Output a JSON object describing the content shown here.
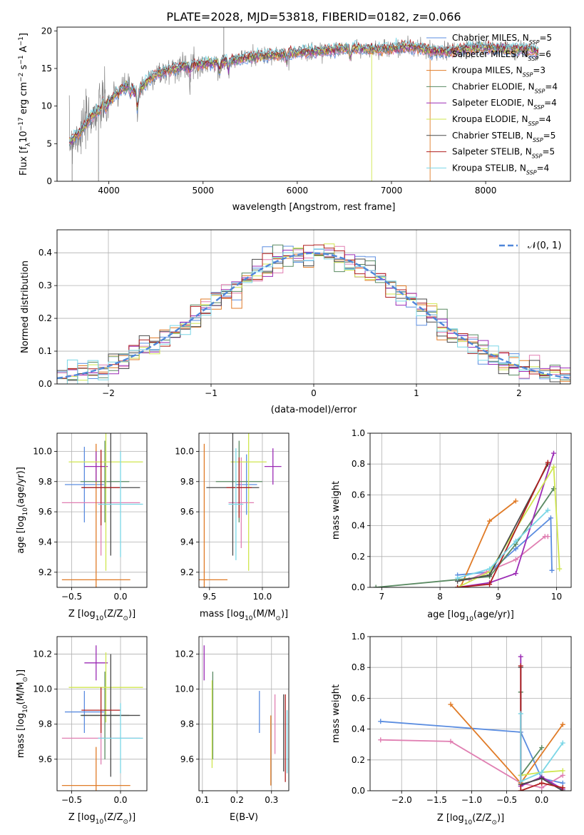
{
  "colors": {
    "chabrier_miles": "#5b8de0",
    "salpeter_miles": "#e07fb2",
    "kroupa_miles": "#e07b27",
    "chabrier_elodie": "#5a8a62",
    "salpeter_elodie": "#9b2bb5",
    "kroupa_elodie": "#cfe64f",
    "chabrier_stelib": "#4a4a4a",
    "salpeter_stelib": "#b01f1f",
    "kroupa_stelib": "#7ad6e6",
    "data_spectrum": "#808080",
    "grid": "#b0b0b0",
    "gauss": "#4f86d9"
  },
  "legend_entries": [
    {
      "key": "chabrier_miles",
      "label": "Chabrier MILES, N",
      "n": "5"
    },
    {
      "key": "salpeter_miles",
      "label": "Salpeter MILES, N",
      "n": "6"
    },
    {
      "key": "kroupa_miles",
      "label": "Kroupa MILES, N",
      "n": "3"
    },
    {
      "key": "chabrier_elodie",
      "label": "Chabrier ELODIE, N",
      "n": "4"
    },
    {
      "key": "salpeter_elodie",
      "label": "Salpeter ELODIE, N",
      "n": "4"
    },
    {
      "key": "kroupa_elodie",
      "label": "Kroupa ELODIE, N",
      "n": "4"
    },
    {
      "key": "chabrier_stelib",
      "label": "Chabrier STELIB, N",
      "n": "5"
    },
    {
      "key": "salpeter_stelib",
      "label": "Salpeter STELIB, N",
      "n": "5"
    },
    {
      "key": "kroupa_stelib",
      "label": "Kroupa STELIB, N",
      "n": "4"
    }
  ],
  "legend_sub": "SSP",
  "chart_data": [
    {
      "id": "spectrum",
      "type": "line",
      "title": "PLATE=2028, MJD=53818, FIBERID=0182, z=0.066",
      "xlabel": "wavelength [Angstrom, rest frame]",
      "ylabel": "Flux [f",
      "ylabel_sub": "λ",
      "ylabel_rest": "10",
      "ylabel_exp": "−17",
      "ylabel_units": " erg cm",
      "ylabel_exp2": "−2",
      "ylabel_s": " s",
      "ylabel_exp3": "−1",
      "ylabel_A": " A",
      "ylabel_exp4": "−1",
      "ylabel_close": "]",
      "xlim": [
        3450,
        8900
      ],
      "ylim": [
        0,
        20.5
      ],
      "xticks": [
        "4000",
        "5000",
        "6000",
        "7000",
        "8000"
      ],
      "yticks": [
        "0",
        "5",
        "10",
        "15",
        "20"
      ],
      "continuum": [
        [
          3580,
          5.2
        ],
        [
          3700,
          6.5
        ],
        [
          3800,
          8.5
        ],
        [
          3900,
          9.5
        ],
        [
          4000,
          10.5
        ],
        [
          4100,
          12.0
        ],
        [
          4200,
          12.8
        ],
        [
          4300,
          11.5
        ],
        [
          4400,
          13.3
        ],
        [
          4500,
          14.2
        ],
        [
          4600,
          14.6
        ],
        [
          4800,
          15.3
        ],
        [
          5000,
          15.6
        ],
        [
          5200,
          15.8
        ],
        [
          5400,
          16.3
        ],
        [
          5600,
          16.6
        ],
        [
          5800,
          16.8
        ],
        [
          6000,
          17.1
        ],
        [
          6200,
          17.3
        ],
        [
          6400,
          17.5
        ],
        [
          6600,
          17.7
        ],
        [
          6800,
          17.5
        ],
        [
          7000,
          17.7
        ],
        [
          7200,
          17.9
        ],
        [
          7400,
          17.4
        ],
        [
          7600,
          17.2
        ],
        [
          7800,
          17.6
        ],
        [
          8000,
          17.8
        ],
        [
          8200,
          17.6
        ],
        [
          8400,
          17.5
        ],
        [
          8560,
          17.3
        ]
      ],
      "absorption_lines": [
        [
          3934,
          10.8
        ],
        [
          3969,
          9.5
        ],
        [
          4101,
          11.3
        ],
        [
          4227,
          11.5
        ],
        [
          4304,
          9.2
        ],
        [
          4861,
          14.3
        ],
        [
          5175,
          14.2
        ],
        [
          5270,
          14.8
        ],
        [
          5890,
          15.6
        ],
        [
          6563,
          16.1
        ]
      ]
    },
    {
      "id": "residuals",
      "type": "histogram",
      "xlabel": "(data-model)/error",
      "ylabel": "Normed distribution",
      "xlim": [
        -2.5,
        2.5
      ],
      "ylim": [
        0,
        0.47
      ],
      "xticks": [
        "−2",
        "−1",
        "0",
        "1",
        "2"
      ],
      "yticks": [
        "0.0",
        "0.1",
        "0.2",
        "0.3",
        "0.4"
      ],
      "legend": "𝒩(0, 1)",
      "bin_width": 0.1
    },
    {
      "id": "age_vs_Z",
      "type": "scatter",
      "xlabel": "Z [log",
      "xlabel_sub": "10",
      "xlabel_rest": "(Z/Z",
      "xlabel_sun": "⊙",
      "xlabel_close": ")]",
      "ylabel": "age  [log",
      "ylabel_sub": "10",
      "ylabel_rest": "(age/yr)]",
      "xlim": [
        -0.65,
        0.27
      ],
      "ylim": [
        9.1,
        10.12
      ],
      "xticks": [
        "−0.5",
        "0.0"
      ],
      "yticks": [
        "9.2",
        "9.4",
        "9.6",
        "9.8",
        "10.0"
      ],
      "points": [
        {
          "key": "chabrier_miles",
          "x": -0.37,
          "xerr": 0.2,
          "y": 9.78,
          "yerr": 0.25
        },
        {
          "key": "salpeter_miles",
          "x": -0.2,
          "xerr": 0.4,
          "y": 9.66,
          "yerr": 0.35
        },
        {
          "key": "kroupa_miles",
          "x": -0.25,
          "xerr": 0.35,
          "y": 9.15,
          "yerr": 0.9
        },
        {
          "key": "chabrier_elodie",
          "x": -0.16,
          "xerr": 0.25,
          "y": 9.8,
          "yerr": 0.27
        },
        {
          "key": "salpeter_elodie",
          "x": -0.25,
          "xerr": 0.12,
          "y": 9.9,
          "yerr": 0.1
        },
        {
          "key": "kroupa_elodie",
          "x": -0.15,
          "xerr": 0.38,
          "y": 9.93,
          "yerr": 0.72
        },
        {
          "key": "chabrier_stelib",
          "x": -0.1,
          "xerr": 0.3,
          "y": 9.76,
          "yerr": 0.45
        },
        {
          "key": "salpeter_stelib",
          "x": -0.2,
          "xerr": 0.2,
          "y": 9.76,
          "yerr": 0.25
        },
        {
          "key": "kroupa_stelib",
          "x": 0.0,
          "xerr": 0.23,
          "y": 9.65,
          "yerr": 0.35
        }
      ]
    },
    {
      "id": "age_vs_mass",
      "type": "scatter",
      "xlabel": "mass [log",
      "xlabel_sub": "10",
      "xlabel_rest": "(M/M",
      "xlabel_sun": "⊙",
      "xlabel_close": ")]",
      "xlim": [
        9.4,
        10.25
      ],
      "ylim": [
        9.1,
        10.12
      ],
      "xticks": [
        "9.5",
        "10.0"
      ],
      "yticks": [
        "9.2",
        "9.4",
        "9.6",
        "9.8",
        "10.0"
      ],
      "points": [
        {
          "key": "chabrier_miles",
          "x": 9.85,
          "xerr": 0.1,
          "y": 9.78,
          "yerr": 0.2
        },
        {
          "key": "salpeter_miles",
          "x": 9.8,
          "xerr": 0.12,
          "y": 9.66,
          "yerr": 0.3
        },
        {
          "key": "kroupa_miles",
          "x": 9.45,
          "xerr": 0.22,
          "y": 9.15,
          "yerr": 0.9
        },
        {
          "key": "chabrier_elodie",
          "x": 9.78,
          "xerr": 0.22,
          "y": 9.8,
          "yerr": 0.27
        },
        {
          "key": "salpeter_elodie",
          "x": 10.1,
          "xerr": 0.08,
          "y": 9.9,
          "yerr": 0.12
        },
        {
          "key": "kroupa_elodie",
          "x": 9.87,
          "xerr": 0.17,
          "y": 9.93,
          "yerr": 0.72
        },
        {
          "key": "chabrier_stelib",
          "x": 9.72,
          "xerr": 0.25,
          "y": 9.76,
          "yerr": 0.45
        },
        {
          "key": "salpeter_stelib",
          "x": 9.78,
          "xerr": 0.12,
          "y": 9.76,
          "yerr": 0.2
        },
        {
          "key": "kroupa_stelib",
          "x": 9.75,
          "xerr": 0.07,
          "y": 9.65,
          "yerr": 0.37
        }
      ]
    },
    {
      "id": "weight_vs_age",
      "type": "line",
      "xlabel": "age  [log",
      "xlabel_sub": "10",
      "xlabel_rest": "(age/yr)]",
      "ylabel": "mass weight",
      "xlim": [
        6.8,
        10.25
      ],
      "ylim": [
        0,
        1.0
      ],
      "xticks": [
        "7",
        "8",
        "9",
        "10"
      ],
      "yticks": [
        "0.0",
        "0.2",
        "0.4",
        "0.6",
        "0.8",
        "1.0"
      ],
      "series": [
        {
          "key": "chabrier_miles",
          "x": [
            8.3,
            8.85,
            9.3,
            9.9,
            9.92
          ],
          "y": [
            0.08,
            0.1,
            0.25,
            0.45,
            0.11
          ]
        },
        {
          "key": "salpeter_miles",
          "x": [
            8.5,
            8.8,
            9.3,
            9.8,
            9.85
          ],
          "y": [
            0.05,
            0.1,
            0.18,
            0.33,
            0.33
          ]
        },
        {
          "key": "kroupa_miles",
          "x": [
            8.35,
            8.85,
            9.3
          ],
          "y": [
            0.0,
            0.43,
            0.56
          ]
        },
        {
          "key": "chabrier_elodie",
          "x": [
            6.9,
            8.85,
            9.3,
            9.95
          ],
          "y": [
            0.0,
            0.07,
            0.28,
            0.64
          ]
        },
        {
          "key": "salpeter_elodie",
          "x": [
            8.3,
            8.85,
            9.3,
            9.95
          ],
          "y": [
            0.0,
            0.03,
            0.09,
            0.87
          ]
        },
        {
          "key": "kroupa_elodie",
          "x": [
            8.3,
            8.85,
            9.95,
            10.05
          ],
          "y": [
            0.0,
            0.1,
            0.78,
            0.12
          ]
        },
        {
          "key": "chabrier_stelib",
          "x": [
            8.3,
            8.85,
            9.85
          ],
          "y": [
            0.04,
            0.08,
            0.8
          ]
        },
        {
          "key": "salpeter_stelib",
          "x": [
            8.3,
            8.85,
            9.85
          ],
          "y": [
            0.0,
            0.02,
            0.81
          ]
        },
        {
          "key": "kroupa_stelib",
          "x": [
            8.3,
            8.85,
            9.3,
            9.85
          ],
          "y": [
            0.06,
            0.12,
            0.3,
            0.5
          ]
        }
      ]
    },
    {
      "id": "mass_vs_Z",
      "type": "scatter",
      "xlabel": "Z [log",
      "xlabel_sub": "10",
      "xlabel_rest": "(Z/Z",
      "xlabel_sun": "⊙",
      "xlabel_close": ")]",
      "ylabel": "mass [log",
      "ylabel_sub": "10",
      "ylabel_rest": "(M/M",
      "ylabel_sun": "⊙",
      "ylabel_close": ")]",
      "xlim": [
        -0.65,
        0.27
      ],
      "ylim": [
        9.42,
        10.3
      ],
      "xticks": [
        "−0.5",
        "0.0"
      ],
      "yticks": [
        "9.6",
        "9.8",
        "10.0",
        "10.2"
      ],
      "points": [
        {
          "key": "chabrier_miles",
          "x": -0.37,
          "xerr": 0.2,
          "y": 9.87,
          "yerr": 0.12
        },
        {
          "key": "salpeter_miles",
          "x": -0.2,
          "xerr": 0.4,
          "y": 9.72,
          "yerr": 0.15
        },
        {
          "key": "kroupa_miles",
          "x": -0.25,
          "xerr": 0.35,
          "y": 9.45,
          "yerr": 0.22
        },
        {
          "key": "chabrier_elodie",
          "x": -0.16,
          "xerr": 0.25,
          "y": 9.85,
          "yerr": 0.25
        },
        {
          "key": "salpeter_elodie",
          "x": -0.25,
          "xerr": 0.12,
          "y": 10.15,
          "yerr": 0.1
        },
        {
          "key": "kroupa_elodie",
          "x": -0.15,
          "xerr": 0.38,
          "y": 10.01,
          "yerr": 0.2
        },
        {
          "key": "chabrier_stelib",
          "x": -0.1,
          "xerr": 0.3,
          "y": 9.85,
          "yerr": 0.35
        },
        {
          "key": "salpeter_stelib",
          "x": -0.2,
          "xerr": 0.2,
          "y": 9.88,
          "yerr": 0.13
        },
        {
          "key": "kroupa_stelib",
          "x": 0.0,
          "xerr": 0.23,
          "y": 9.72,
          "yerr": 0.2
        }
      ]
    },
    {
      "id": "mass_vs_ebv",
      "type": "scatter",
      "xlabel": "E(B-V)",
      "xlim": [
        0.09,
        0.35
      ],
      "ylim": [
        9.42,
        10.3
      ],
      "xticks": [
        "0.1",
        "0.2",
        "0.3"
      ],
      "yticks": [
        "9.6",
        "9.8",
        "10.0",
        "10.2"
      ],
      "points": [
        {
          "key": "chabrier_miles",
          "x": 0.265,
          "xerr": 0,
          "y": 9.87,
          "yerr": 0.12
        },
        {
          "key": "salpeter_miles",
          "x": 0.31,
          "xerr": 0,
          "y": 9.8,
          "yerr": 0.17
        },
        {
          "key": "kroupa_miles",
          "x": 0.298,
          "xerr": 0,
          "y": 9.65,
          "yerr": 0.2
        },
        {
          "key": "chabrier_elodie",
          "x": 0.13,
          "xerr": 0,
          "y": 9.85,
          "yerr": 0.25
        },
        {
          "key": "salpeter_elodie",
          "x": 0.105,
          "xerr": 0,
          "y": 10.15,
          "yerr": 0.1
        },
        {
          "key": "kroupa_elodie",
          "x": 0.128,
          "xerr": 0,
          "y": 9.8,
          "yerr": 0.25
        },
        {
          "key": "chabrier_stelib",
          "x": 0.335,
          "xerr": 0,
          "y": 9.75,
          "yerr": 0.22
        },
        {
          "key": "salpeter_stelib",
          "x": 0.34,
          "xerr": 0,
          "y": 9.72,
          "yerr": 0.25
        },
        {
          "key": "kroupa_stelib",
          "x": 0.345,
          "xerr": 0,
          "y": 9.7,
          "yerr": 0.18
        }
      ]
    },
    {
      "id": "weight_vs_Z",
      "type": "line",
      "xlabel": "Z [log",
      "xlabel_sub": "10",
      "xlabel_rest": "(Z/Z",
      "xlabel_sun": "⊙",
      "xlabel_close": ")]",
      "ylabel": "mass weight",
      "xlim": [
        -2.45,
        0.42
      ],
      "ylim": [
        0,
        1.0
      ],
      "xticks": [
        "−2.0",
        "−1.5",
        "−1.0",
        "−0.5",
        "0.0"
      ],
      "yticks": [
        "0.0",
        "0.2",
        "0.4",
        "0.6",
        "0.8",
        "1.0"
      ],
      "series": [
        {
          "key": "chabrier_miles",
          "x": [
            -2.3,
            -0.3,
            0.0,
            0.3
          ],
          "y": [
            0.45,
            0.38,
            0.08,
            0.05
          ]
        },
        {
          "key": "salpeter_miles",
          "x": [
            -2.3,
            -1.3,
            -0.3,
            0.0,
            0.3
          ],
          "y": [
            0.33,
            0.32,
            0.05,
            0.02,
            0.1
          ]
        },
        {
          "key": "kroupa_miles",
          "x": [
            -1.3,
            -0.3,
            0.3
          ],
          "y": [
            0.56,
            0.05,
            0.43
          ]
        },
        {
          "key": "chabrier_elodie",
          "x": [
            -0.3,
            -0.3,
            0.0
          ],
          "y": [
            0.64,
            0.1,
            0.28
          ]
        },
        {
          "key": "salpeter_elodie",
          "x": [
            -0.3,
            -0.3,
            0.0,
            0.3
          ],
          "y": [
            0.87,
            0.03,
            0.09,
            0.01
          ]
        },
        {
          "key": "kroupa_elodie",
          "x": [
            -0.3,
            0.0,
            0.3
          ],
          "y": [
            0.1,
            0.12,
            0.13
          ]
        },
        {
          "key": "chabrier_stelib",
          "x": [
            -0.3,
            -0.3,
            0.0,
            0.3
          ],
          "y": [
            0.8,
            0.04,
            0.08,
            0.0
          ]
        },
        {
          "key": "salpeter_stelib",
          "x": [
            -0.3,
            -0.3,
            0.0,
            0.3
          ],
          "y": [
            0.81,
            0.0,
            0.05,
            0.02
          ]
        },
        {
          "key": "kroupa_stelib",
          "x": [
            -0.3,
            -0.3,
            0.0,
            0.3
          ],
          "y": [
            0.5,
            0.06,
            0.12,
            0.31
          ]
        }
      ]
    }
  ]
}
